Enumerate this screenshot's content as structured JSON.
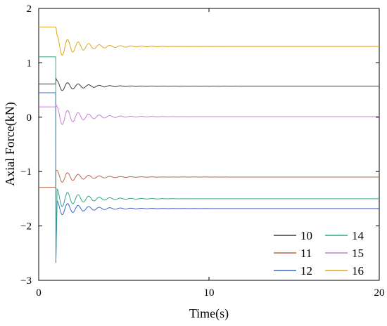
{
  "chart_data": {
    "type": "line",
    "xlabel": "Time(s)",
    "ylabel": "Axial Force(kN)",
    "xlim": [
      0,
      20
    ],
    "ylim": [
      -3,
      2
    ],
    "xticks": [
      0,
      10,
      20
    ],
    "yticks": [
      -3,
      -2,
      -1,
      0,
      1,
      2
    ],
    "grid": false,
    "legend_position": "bottom-right",
    "series": [
      {
        "name": "10",
        "color": "#3a3a3a",
        "initial": 0.61,
        "final": 0.57,
        "step_time": 1.0,
        "spike": 0.72,
        "amp": 0.05
      },
      {
        "name": "11",
        "color": "#b8684a",
        "initial": -1.29,
        "final": -1.1,
        "step_time": 1.0,
        "spike": -0.98,
        "amp": 0.06
      },
      {
        "name": "12",
        "color": "#3a66c8",
        "initial": 0.45,
        "final": -1.68,
        "step_time": 1.0,
        "spike": -2.68,
        "amp": 0.07
      },
      {
        "name": "14",
        "color": "#2ca88c",
        "initial": 1.11,
        "final": -1.5,
        "step_time": 1.0,
        "spike": -2.62,
        "amp": 0.09
      },
      {
        "name": "15",
        "color": "#c77fd6",
        "initial": 0.19,
        "final": 0.01,
        "step_time": 1.0,
        "spike": 0.24,
        "amp": 0.09
      },
      {
        "name": "16",
        "color": "#e0a51e",
        "initial": 1.66,
        "final": 1.3,
        "step_time": 1.0,
        "spike": 1.66,
        "amp": 0.1
      }
    ]
  }
}
